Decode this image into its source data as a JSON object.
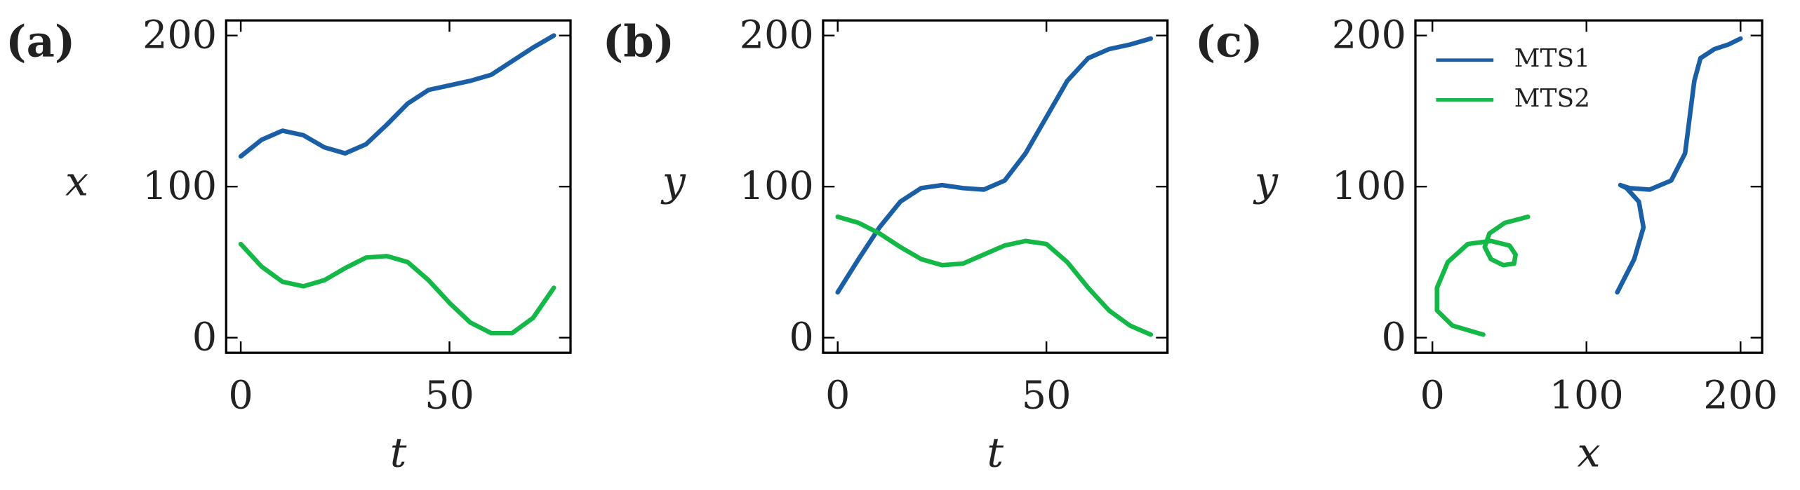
{
  "chart_data": [
    {
      "type": "line",
      "title": "(a)",
      "xlabel": "t",
      "ylabel": "x",
      "x": [
        0,
        5,
        10,
        15,
        20,
        25,
        30,
        35,
        40,
        45,
        50,
        55,
        60,
        65,
        70,
        75
      ],
      "series": [
        {
          "name": "MTS1",
          "color": "#1a5fa6",
          "values": [
            120,
            131,
            137,
            134,
            126,
            122,
            128,
            141,
            155,
            164,
            167,
            170,
            174,
            183,
            192,
            200
          ]
        },
        {
          "name": "MTS2",
          "color": "#13b846",
          "values": [
            62,
            47,
            37,
            34,
            38,
            46,
            53,
            54,
            50,
            38,
            23,
            10,
            3,
            3,
            13,
            33
          ]
        }
      ],
      "xlim": [
        -3.5,
        79
      ],
      "ylim": [
        -10,
        210
      ],
      "xticks": [
        0,
        50
      ],
      "yticks": [
        0,
        100,
        200
      ]
    },
    {
      "type": "line",
      "title": "(b)",
      "xlabel": "t",
      "ylabel": "y",
      "x": [
        0,
        5,
        10,
        15,
        20,
        25,
        30,
        35,
        40,
        45,
        50,
        55,
        60,
        65,
        70,
        75
      ],
      "series": [
        {
          "name": "MTS1",
          "color": "#1a5fa6",
          "values": [
            30,
            52,
            73,
            90,
            99,
            101,
            99,
            98,
            104,
            122,
            146,
            170,
            185,
            191,
            194,
            198
          ]
        },
        {
          "name": "MTS2",
          "color": "#13b846",
          "values": [
            80,
            76,
            69,
            60,
            52,
            48,
            49,
            55,
            61,
            64,
            62,
            50,
            33,
            18,
            8,
            2
          ]
        }
      ],
      "xlim": [
        -3.5,
        79
      ],
      "ylim": [
        -10,
        210
      ],
      "xticks": [
        0,
        50
      ],
      "yticks": [
        0,
        100,
        200
      ]
    },
    {
      "type": "line",
      "title": "(c)",
      "xlabel": "x",
      "ylabel": "y",
      "legend": "upper left",
      "series": [
        {
          "name": "MTS1",
          "color": "#1a5fa6",
          "x": [
            120,
            131,
            137,
            134,
            126,
            122,
            128,
            141,
            155,
            164,
            167,
            170,
            174,
            183,
            192,
            200
          ],
          "values": [
            30,
            52,
            73,
            90,
            99,
            101,
            99,
            98,
            104,
            122,
            146,
            170,
            185,
            191,
            194,
            198
          ]
        },
        {
          "name": "MTS2",
          "color": "#13b846",
          "x": [
            62,
            47,
            37,
            34,
            38,
            46,
            53,
            54,
            50,
            38,
            23,
            10,
            3,
            3,
            13,
            33
          ],
          "values": [
            80,
            76,
            69,
            60,
            52,
            48,
            49,
            55,
            61,
            64,
            62,
            50,
            33,
            18,
            8,
            2
          ]
        }
      ],
      "xlim": [
        -11,
        214
      ],
      "ylim": [
        -10,
        210
      ],
      "xticks": [
        0,
        100,
        200
      ],
      "yticks": [
        0,
        100,
        200
      ]
    }
  ]
}
